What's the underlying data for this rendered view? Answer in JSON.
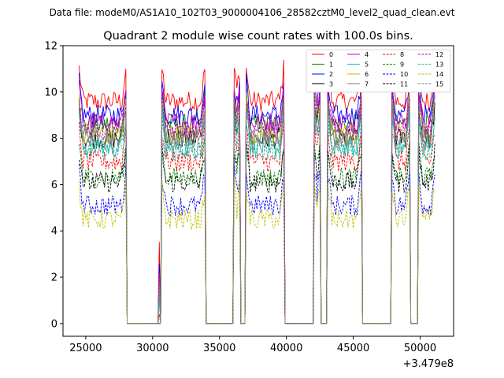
{
  "chart_data": {
    "type": "line",
    "suptitle": "Data file: modeM0/AS1A10_102T03_9000004106_28582cztM0_level2_quad_clean.evt",
    "title": "Quadrant 2 module wise count rates with 100.0s bins.",
    "xlabel": "",
    "ylabel": "",
    "x_offset_label": "+3.479e8",
    "xlim": [
      23300,
      52500
    ],
    "ylim": [
      -0.55,
      12
    ],
    "x_ticks": [
      25000,
      30000,
      35000,
      40000,
      45000,
      50000
    ],
    "x_tick_labels": [
      "25000",
      "30000",
      "35000",
      "40000",
      "45000",
      "50000"
    ],
    "y_ticks": [
      0,
      2,
      4,
      6,
      8,
      10,
      12
    ],
    "y_tick_labels": [
      "0",
      "2",
      "4",
      "6",
      "8",
      "10",
      "12"
    ],
    "legend_position": "top-right",
    "segments": [
      {
        "start": 24500,
        "end": 28000
      },
      {
        "start": 30500,
        "end": 30550
      },
      {
        "start": 30700,
        "end": 33900
      },
      {
        "start": 36100,
        "end": 36500
      },
      {
        "start": 37000,
        "end": 39800
      },
      {
        "start": 42100,
        "end": 42500
      },
      {
        "start": 43100,
        "end": 45600
      },
      {
        "start": 47900,
        "end": 49200
      },
      {
        "start": 49900,
        "end": 51100
      }
    ],
    "series": [
      {
        "name": "0",
        "color": "#ff0000",
        "dash": "solid",
        "mean": 9.6
      },
      {
        "name": "1",
        "color": "#008000",
        "dash": "solid",
        "mean": 8.6
      },
      {
        "name": "2",
        "color": "#0000ff",
        "dash": "solid",
        "mean": 9.0
      },
      {
        "name": "3",
        "color": "#000000",
        "dash": "solid",
        "mean": 8.0
      },
      {
        "name": "4",
        "color": "#bf00bf",
        "dash": "solid",
        "mean": 8.7
      },
      {
        "name": "5",
        "color": "#1fb5a5",
        "dash": "solid",
        "mean": 7.6
      },
      {
        "name": "6",
        "color": "#bfbf00",
        "dash": "solid",
        "mean": 8.2
      },
      {
        "name": "7",
        "color": "#808080",
        "dash": "solid",
        "mean": 8.1
      },
      {
        "name": "8",
        "color": "#ff0000",
        "dash": "dashed",
        "mean": 7.0
      },
      {
        "name": "9",
        "color": "#008000",
        "dash": "dashed",
        "mean": 6.3
      },
      {
        "name": "10",
        "color": "#0000ff",
        "dash": "dashed",
        "mean": 5.1
      },
      {
        "name": "11",
        "color": "#000000",
        "dash": "dashed",
        "mean": 6.1
      },
      {
        "name": "12",
        "color": "#bf00bf",
        "dash": "dashed",
        "mean": 8.4
      },
      {
        "name": "13",
        "color": "#1fb5a5",
        "dash": "dashed",
        "mean": 7.5
      },
      {
        "name": "14",
        "color": "#bfbf00",
        "dash": "dashed",
        "mean": 4.5
      },
      {
        "name": "15",
        "color": "#808080",
        "dash": "dashed",
        "mean": 7.8
      }
    ]
  }
}
